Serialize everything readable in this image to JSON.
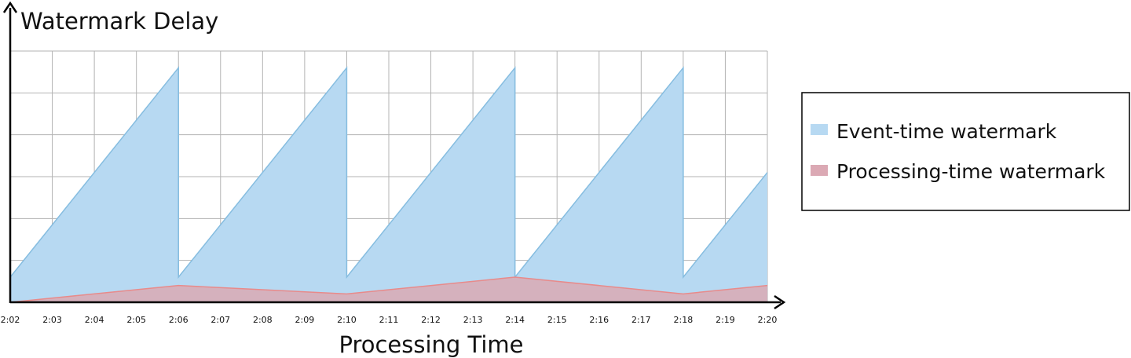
{
  "chart_data": {
    "type": "area",
    "ylabel": "Watermark Delay",
    "xlabel": "Processing Time",
    "x": [
      "2:02",
      "2:03",
      "2:04",
      "2:05",
      "2:06",
      "2:07",
      "2:08",
      "2:09",
      "2:10",
      "2:11",
      "2:12",
      "2:13",
      "2:14",
      "2:15",
      "2:16",
      "2:17",
      "2:18",
      "2:19",
      "2:20"
    ],
    "ylim": [
      0,
      6
    ],
    "grid": true,
    "legend_position": "right",
    "series": [
      {
        "name": "Event-time watermark",
        "color": "#b7d9f2",
        "stroke": "#86bde0",
        "points": [
          {
            "x": "2:02",
            "y": 0.6
          },
          {
            "x": "2:06",
            "y": 5.6
          },
          {
            "x": "2:06",
            "y": 0.6
          },
          {
            "x": "2:10",
            "y": 5.6
          },
          {
            "x": "2:10",
            "y": 0.6
          },
          {
            "x": "2:14",
            "y": 5.6
          },
          {
            "x": "2:14",
            "y": 0.6
          },
          {
            "x": "2:18",
            "y": 5.6
          },
          {
            "x": "2:18",
            "y": 0.6
          },
          {
            "x": "2:20",
            "y": 3.1
          }
        ]
      },
      {
        "name": "Processing-time watermark",
        "color": "#dba9b4",
        "stroke": "#e88a8a",
        "points": [
          {
            "x": "2:02",
            "y": 0.0
          },
          {
            "x": "2:06",
            "y": 0.4
          },
          {
            "x": "2:10",
            "y": 0.2
          },
          {
            "x": "2:14",
            "y": 0.6
          },
          {
            "x": "2:18",
            "y": 0.2
          },
          {
            "x": "2:20",
            "y": 0.4
          }
        ]
      }
    ]
  }
}
